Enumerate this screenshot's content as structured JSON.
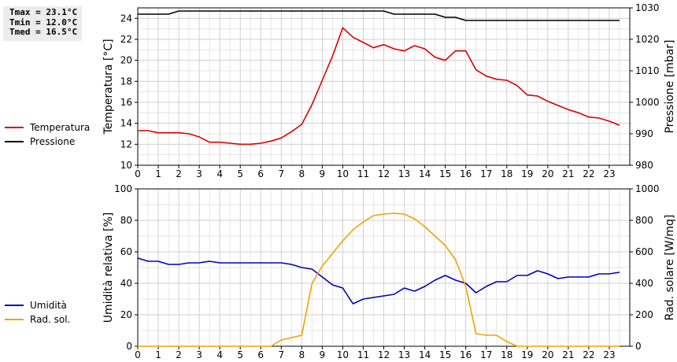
{
  "stats": {
    "tmax": "Tmax = 23.1°C",
    "tmin": "Tmin = 12.0°C",
    "tmed": "Tmed = 16.5°C"
  },
  "chart_data": [
    {
      "type": "line",
      "xlim": [
        0,
        24
      ],
      "xticks": [
        "0",
        "1",
        "2",
        "3",
        "4",
        "5",
        "6",
        "7",
        "8",
        "9",
        "10",
        "11",
        "12",
        "13",
        "14",
        "15",
        "16",
        "17",
        "18",
        "19",
        "20",
        "21",
        "22",
        "23"
      ],
      "grid": true,
      "ylabel": "Temperatura [°C]",
      "ylim": [
        10,
        25
      ],
      "yticks": [
        "10",
        "12",
        "14",
        "16",
        "18",
        "20",
        "22",
        "24"
      ],
      "y2label": "Pressione [mbar]",
      "y2lim": [
        980,
        1030
      ],
      "y2ticks": [
        "980",
        "990",
        "1000",
        "1010",
        "1020",
        "1030"
      ],
      "legend_position": "left",
      "series": [
        {
          "name": "Temperatura",
          "color": "#dd0000",
          "axis": "left",
          "x": [
            0,
            0.5,
            1,
            1.5,
            2,
            2.5,
            3,
            3.5,
            4,
            4.5,
            5,
            5.5,
            6,
            6.5,
            7,
            7.5,
            8,
            8.5,
            9,
            9.5,
            10,
            10.5,
            11,
            11.5,
            12,
            12.5,
            13,
            13.5,
            14,
            14.5,
            15,
            15.5,
            16,
            16.5,
            17,
            17.5,
            18,
            18.5,
            19,
            19.5,
            20,
            20.5,
            21,
            21.5,
            22,
            22.5,
            23,
            23.5
          ],
          "values": [
            13.3,
            13.3,
            13.1,
            13.1,
            13.1,
            13.0,
            12.7,
            12.2,
            12.2,
            12.1,
            12.0,
            12.0,
            12.1,
            12.3,
            12.6,
            13.2,
            13.9,
            15.8,
            18.1,
            20.4,
            23.1,
            22.2,
            21.7,
            21.2,
            21.5,
            21.1,
            20.9,
            21.4,
            21.1,
            20.3,
            20.0,
            20.9,
            20.9,
            19.1,
            18.5,
            18.2,
            18.1,
            17.6,
            16.7,
            16.6,
            16.1,
            15.7,
            15.3,
            15.0,
            14.6,
            14.5,
            14.2,
            13.8
          ]
        },
        {
          "name": "Pressione",
          "color": "#000000",
          "axis": "right",
          "x": [
            0,
            0.5,
            1,
            1.5,
            2,
            2.5,
            3,
            3.5,
            4,
            4.5,
            5,
            5.5,
            6,
            6.5,
            7,
            7.5,
            8,
            8.5,
            9,
            9.5,
            10,
            10.5,
            11,
            11.5,
            12,
            12.5,
            13,
            13.5,
            14,
            14.5,
            15,
            15.5,
            16,
            16.5,
            17,
            17.5,
            18,
            18.5,
            19,
            19.5,
            20,
            20.5,
            21,
            21.5,
            22,
            22.5,
            23,
            23.5
          ],
          "values": [
            1028,
            1028,
            1028,
            1028,
            1029,
            1029,
            1029,
            1029,
            1029,
            1029,
            1029,
            1029,
            1029,
            1029,
            1029,
            1029,
            1029,
            1029,
            1029,
            1029,
            1029,
            1029,
            1029,
            1029,
            1029,
            1028,
            1028,
            1028,
            1028,
            1028,
            1027,
            1027,
            1026,
            1026,
            1026,
            1026,
            1026,
            1026,
            1026,
            1026,
            1026,
            1026,
            1026,
            1026,
            1026,
            1026,
            1026,
            1026
          ]
        }
      ]
    },
    {
      "type": "line",
      "xlim": [
        0,
        24
      ],
      "xticks": [
        "0",
        "1",
        "2",
        "3",
        "4",
        "5",
        "6",
        "7",
        "8",
        "9",
        "10",
        "11",
        "12",
        "13",
        "14",
        "15",
        "16",
        "17",
        "18",
        "19",
        "20",
        "21",
        "22",
        "23"
      ],
      "grid": true,
      "ylabel": "Umidità relativa [%]",
      "ylim": [
        0,
        100
      ],
      "yticks": [
        "0",
        "20",
        "40",
        "60",
        "80",
        "100"
      ],
      "y2label": "Rad. solare [W/mq]",
      "y2lim": [
        0,
        1000
      ],
      "y2ticks": [
        "0",
        "200",
        "400",
        "600",
        "800",
        "1000"
      ],
      "legend_position": "left",
      "series": [
        {
          "name": "Umidità",
          "color": "#0000bb",
          "axis": "left",
          "x": [
            0,
            0.5,
            1,
            1.5,
            2,
            2.5,
            3,
            3.5,
            4,
            4.5,
            5,
            5.5,
            6,
            6.5,
            7,
            7.5,
            8,
            8.5,
            9,
            9.5,
            10,
            10.5,
            11,
            11.5,
            12,
            12.5,
            13,
            13.5,
            14,
            14.5,
            15,
            15.5,
            16,
            16.5,
            17,
            17.5,
            18,
            18.5,
            19,
            19.5,
            20,
            20.5,
            21,
            21.5,
            22,
            22.5,
            23,
            23.5
          ],
          "values": [
            56,
            54,
            54,
            52,
            52,
            53,
            53,
            54,
            53,
            53,
            53,
            53,
            53,
            53,
            53,
            52,
            50,
            49,
            44,
            39,
            37,
            27,
            30,
            31,
            32,
            33,
            37,
            35,
            38,
            42,
            45,
            42,
            40,
            34,
            38,
            41,
            41,
            45,
            45,
            48,
            46,
            43,
            44,
            44,
            44,
            46,
            46,
            47
          ]
        },
        {
          "name": "Rad. sol.",
          "color": "#f5a000",
          "axis": "right",
          "x": [
            0,
            0.5,
            1,
            1.5,
            2,
            2.5,
            3,
            3.5,
            4,
            4.5,
            5,
            5.5,
            6,
            6.5,
            7,
            7.5,
            8,
            8.5,
            9,
            9.5,
            10,
            10.5,
            11,
            11.5,
            12,
            12.5,
            13,
            13.5,
            14,
            14.5,
            15,
            15.5,
            16,
            16.5,
            17,
            17.5,
            18,
            18.5,
            19,
            19.5,
            20,
            20.5,
            21,
            21.5,
            22,
            22.5,
            23,
            23.5
          ],
          "values": [
            0,
            0,
            0,
            0,
            0,
            0,
            0,
            0,
            0,
            0,
            0,
            0,
            0,
            0,
            40,
            55,
            70,
            400,
            510,
            590,
            670,
            740,
            790,
            830,
            840,
            845,
            840,
            810,
            760,
            700,
            640,
            550,
            380,
            80,
            70,
            70,
            30,
            0,
            0,
            0,
            0,
            0,
            0,
            0,
            0,
            0,
            0,
            0
          ]
        }
      ]
    }
  ]
}
